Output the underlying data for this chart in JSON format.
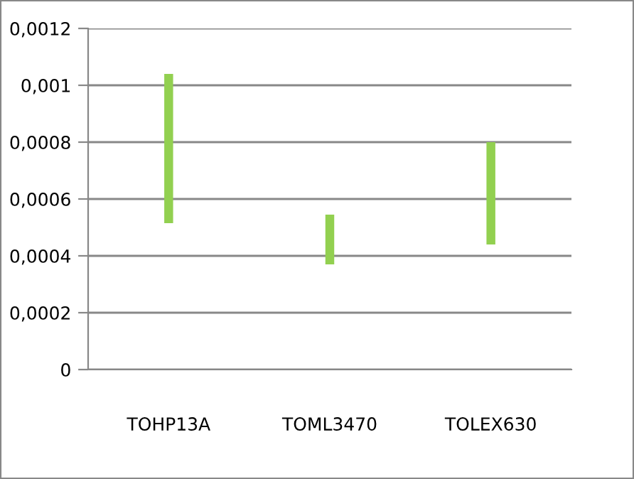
{
  "chart_data": {
    "type": "bar",
    "categories": [
      "TOHP13A",
      "TOML3470",
      "TOLEX630"
    ],
    "values": [
      0.000525,
      0.000175,
      0.00036
    ],
    "base": [
      0.000515,
      0.00037,
      0.00044
    ],
    "color": "#92d050",
    "ylim": [
      0,
      0.0012
    ],
    "yticks": [
      {
        "value": 0,
        "label": "0"
      },
      {
        "value": 0.0002,
        "label": "0,0002"
      },
      {
        "value": 0.0004,
        "label": "0,0004"
      },
      {
        "value": 0.0006,
        "label": "0,0006"
      },
      {
        "value": 0.0008,
        "label": "0,0008"
      },
      {
        "value": 0.001,
        "label": "0,001"
      },
      {
        "value": 0.0012,
        "label": "0,0012"
      }
    ],
    "grid": "y",
    "legend": false
  }
}
